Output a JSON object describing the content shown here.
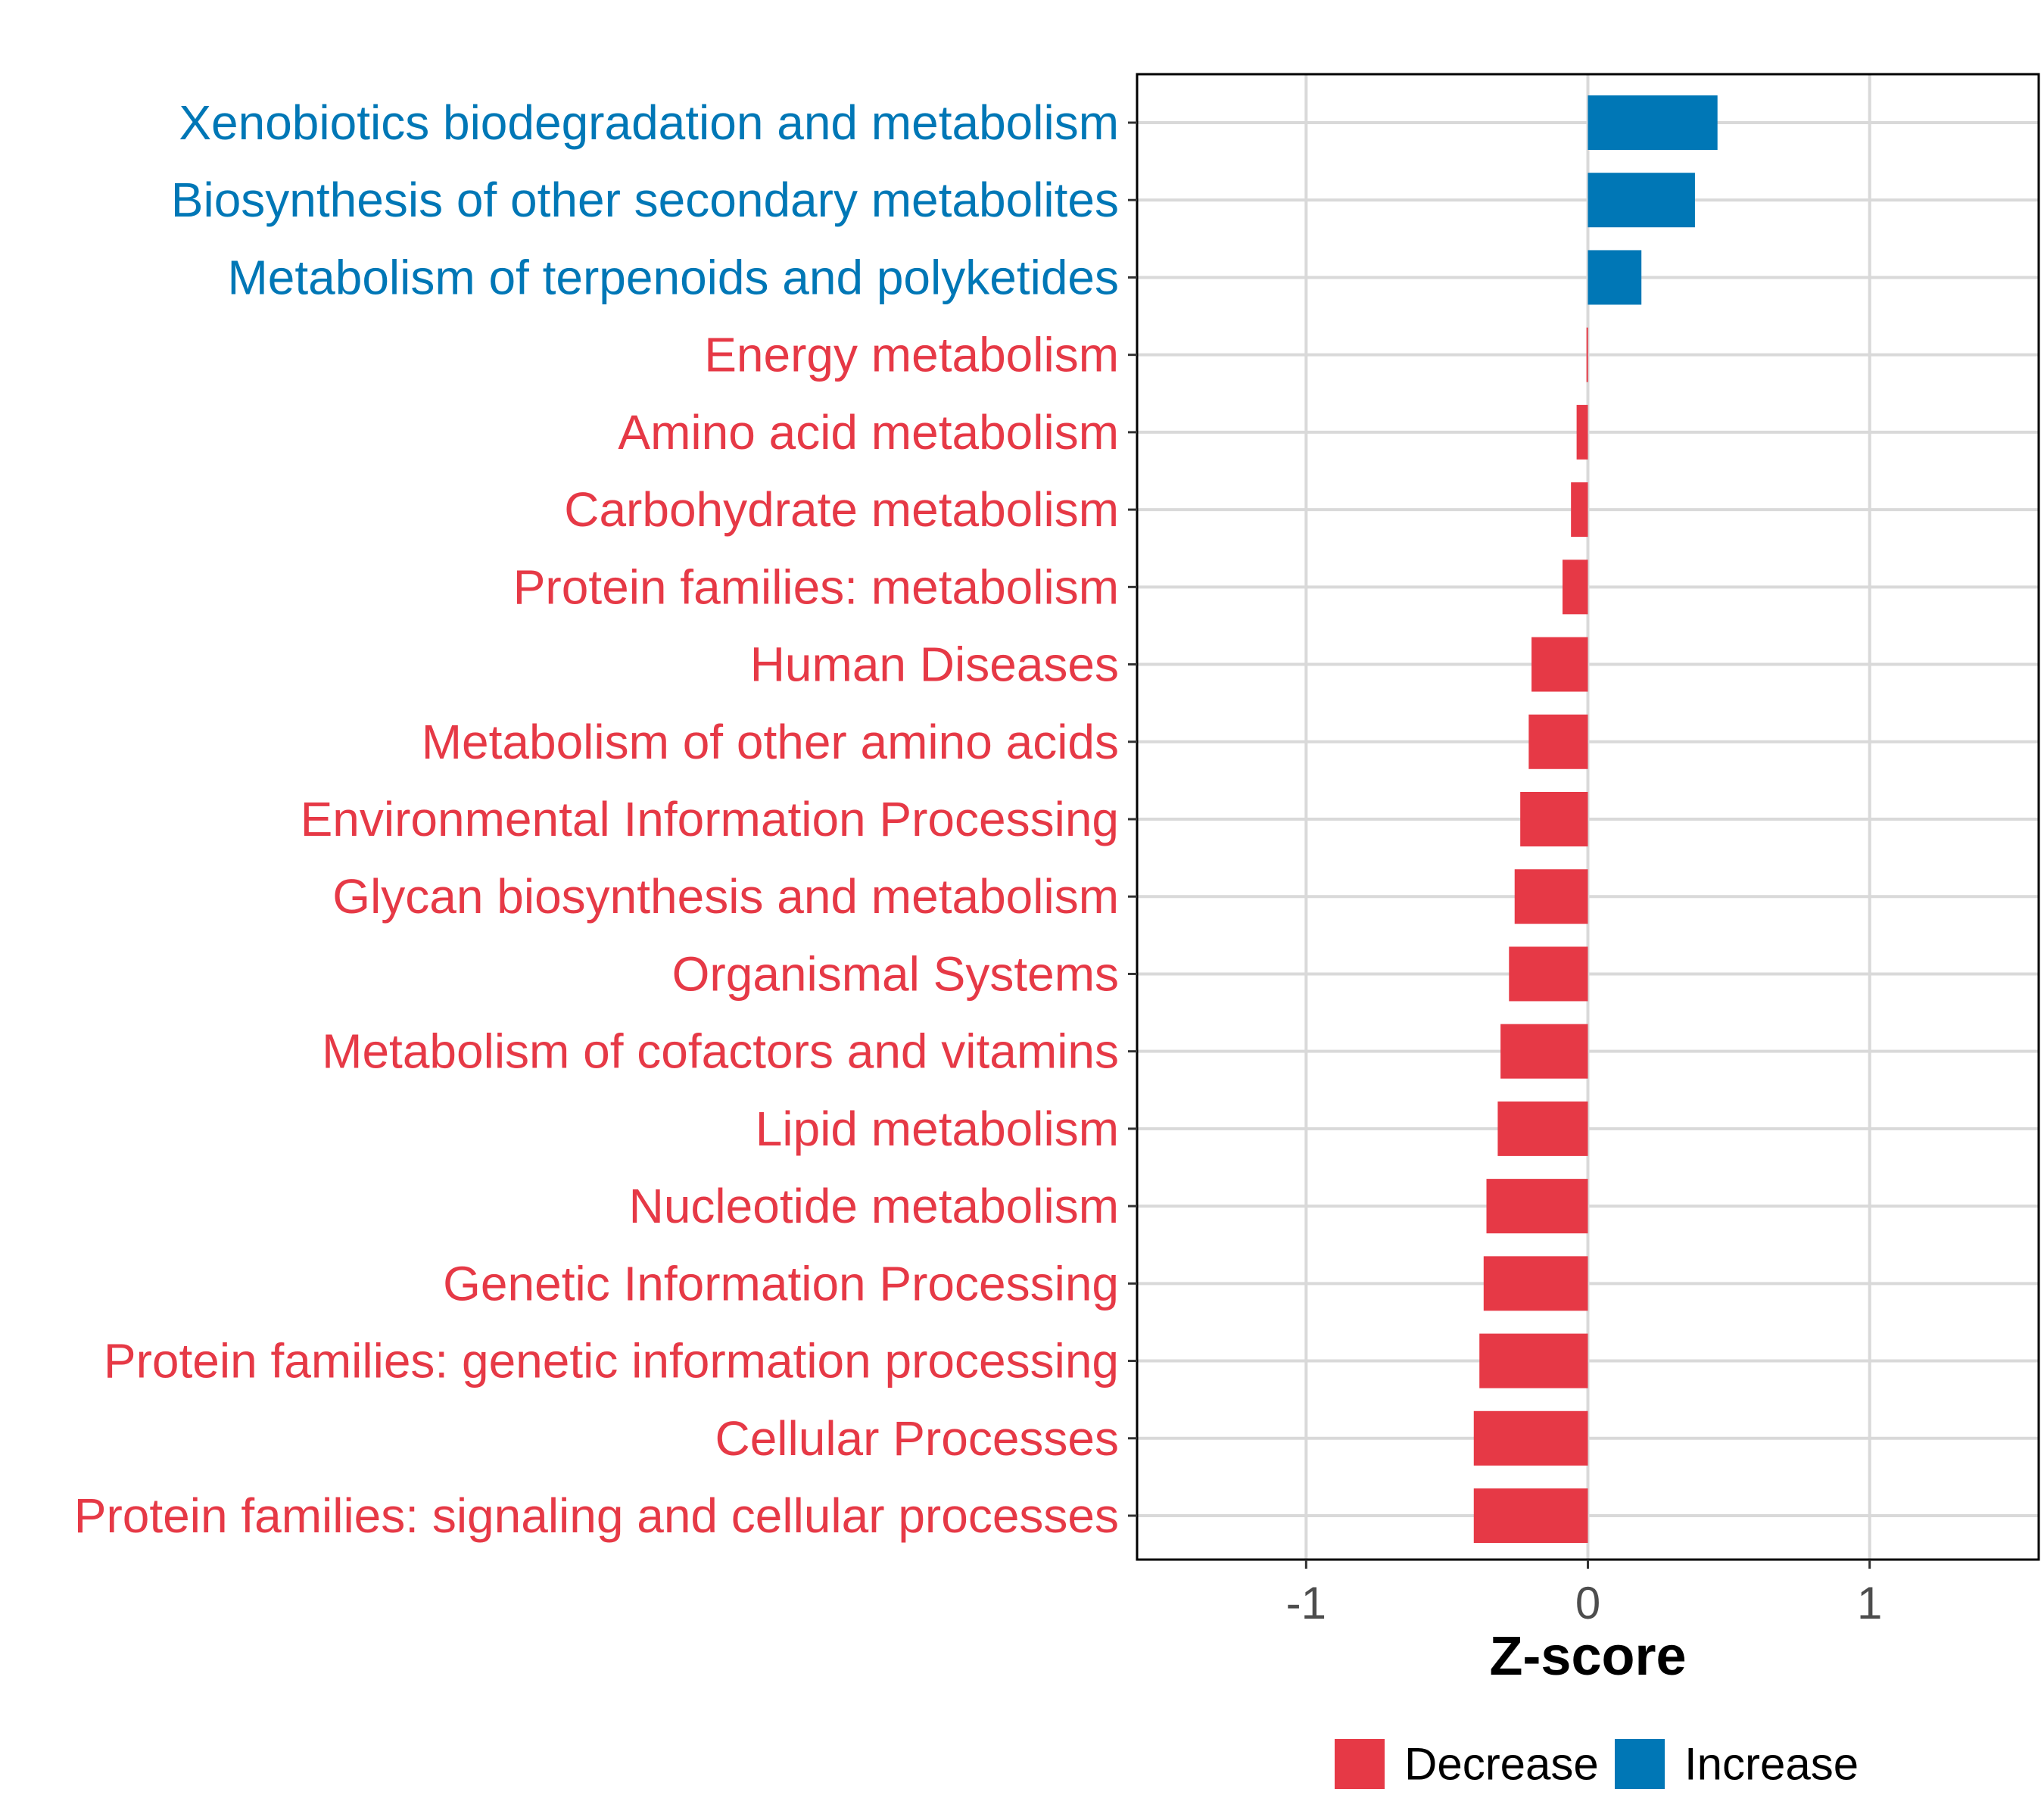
{
  "chart_data": {
    "type": "bar",
    "orientation": "horizontal",
    "xlabel": "Z-score",
    "ylabel": "",
    "xlim": [
      -1.6,
      1.6
    ],
    "xticks": [
      -1,
      0,
      1
    ],
    "xtick_labels": [
      "-1",
      "0",
      "1"
    ],
    "grid": true,
    "legend_position": "bottom",
    "legend": [
      {
        "label": "Decrease",
        "color": "#e63946"
      },
      {
        "label": "Increase",
        "color": "#0077b6"
      }
    ],
    "categories": [
      "Xenobiotics biodegradation and metabolism",
      "Biosynthesis of other secondary metabolites",
      "Metabolism of terpenoids and polyketides",
      "Energy metabolism",
      "Amino acid metabolism",
      "Carbohydrate metabolism",
      "Protein families: metabolism",
      "Human Diseases",
      "Metabolism of other amino acids",
      "Environmental Information Processing",
      "Glycan biosynthesis and metabolism",
      "Organismal Systems",
      "Metabolism of cofactors and vitamins",
      "Lipid metabolism",
      "Nucleotide metabolism",
      "Genetic Information Processing",
      "Protein families: genetic information processing",
      "Cellular Processes",
      "Protein families: signaling and cellular processes"
    ],
    "values": [
      0.46,
      0.38,
      0.19,
      -0.005,
      -0.04,
      -0.06,
      -0.09,
      -0.2,
      -0.21,
      -0.24,
      -0.26,
      -0.28,
      -0.31,
      -0.32,
      -0.36,
      -0.37,
      -0.385,
      -0.405,
      -0.405
    ],
    "groups": [
      "Increase",
      "Increase",
      "Increase",
      "Decrease",
      "Decrease",
      "Decrease",
      "Decrease",
      "Decrease",
      "Decrease",
      "Decrease",
      "Decrease",
      "Decrease",
      "Decrease",
      "Decrease",
      "Decrease",
      "Decrease",
      "Decrease",
      "Decrease",
      "Decrease"
    ],
    "colors": {
      "Decrease": "#e63946",
      "Increase": "#0077b6"
    }
  }
}
